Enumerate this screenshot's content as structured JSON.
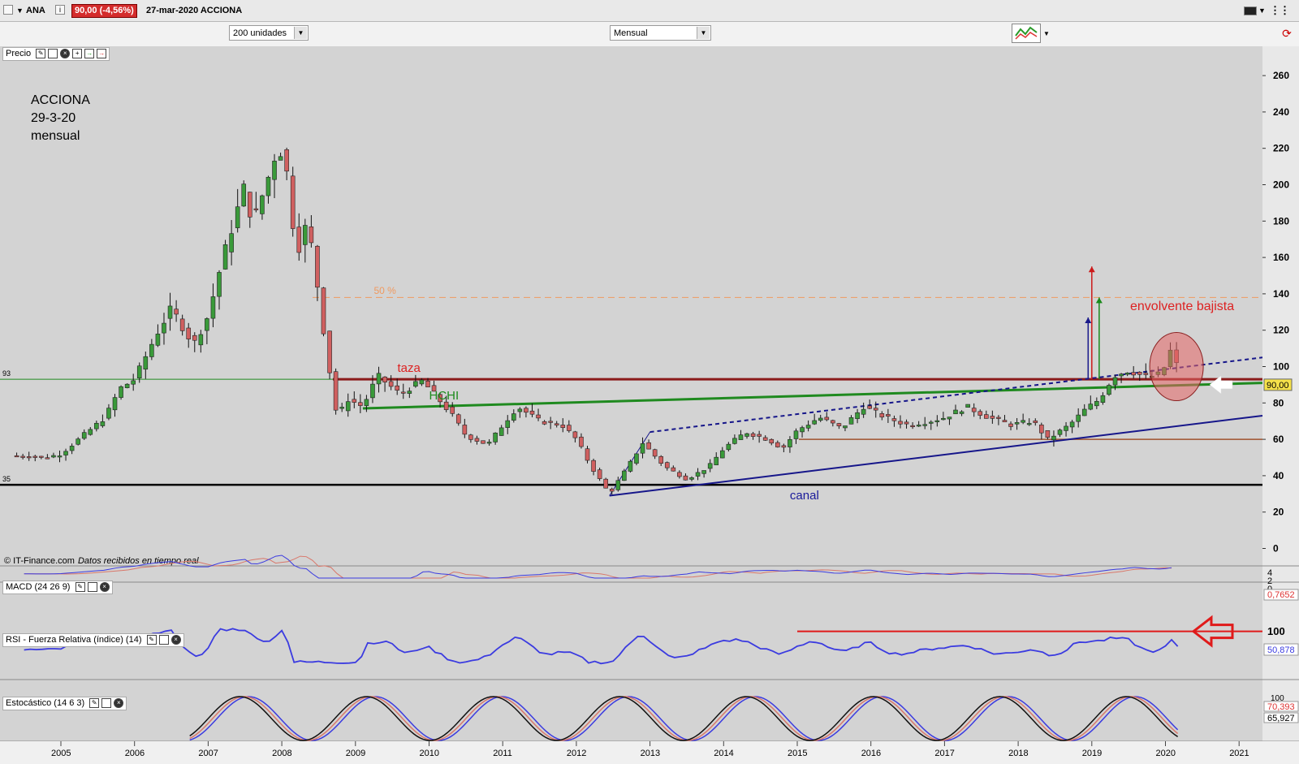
{
  "header": {
    "symbol": "ANA",
    "price_change": "90,00 (-4,56%)",
    "date_name": "27-mar-2020 ACCIONA"
  },
  "toolbar": {
    "units": "200 unidades",
    "period": "Mensual"
  },
  "price_panel": {
    "label": "Precio",
    "credit": "© IT-Finance.com",
    "credit_note": "Datos recibidos en tiempo real",
    "notes": [
      "ACCIONA",
      "29-3-20",
      "mensual"
    ],
    "annotations": {
      "taza": "taza",
      "hchi": "HCHI",
      "canal": "canal",
      "fib": "50 %",
      "engulfing": "envolvente bajista"
    },
    "left_values": [
      "93",
      "35"
    ],
    "last_price": "90,00",
    "colors": {
      "up": "#3a9a3a",
      "down": "#d06060",
      "taza": "#8b1a1a",
      "hchi": "#1f8a1f",
      "canal": "#16168a",
      "support": "#000000",
      "fib": "#f09a60",
      "base": "#a0522d"
    }
  },
  "macd_panel": {
    "label": "MACD (24 26 9)",
    "value": "0,7652",
    "ticks": [
      "4",
      "2",
      "0"
    ]
  },
  "rsi_panel": {
    "label": "RSI - Fuerza Relativa (índice) (14)",
    "value": "50,878",
    "tick": "100"
  },
  "stoch_panel": {
    "label": "Estocástico (14 6 3)",
    "value_k": "70,393",
    "value_d": "65,927",
    "tick": "100"
  },
  "chart_data": {
    "type": "candlestick",
    "title": "ACCIONA",
    "frequency": "mensual",
    "x_years": [
      "2005",
      "2006",
      "2007",
      "2008",
      "2009",
      "2010",
      "2011",
      "2012",
      "2013",
      "2014",
      "2015",
      "2016",
      "2017",
      "2018",
      "2019",
      "2020",
      "2021"
    ],
    "y_ticks": [
      0,
      20,
      40,
      60,
      80,
      100,
      120,
      140,
      160,
      180,
      200,
      220,
      240,
      260
    ],
    "ylim": [
      -10,
      270
    ],
    "close_path": [
      [
        2004.5,
        51
      ],
      [
        2004.8,
        50
      ],
      [
        2005.0,
        52
      ],
      [
        2005.3,
        62
      ],
      [
        2005.6,
        72
      ],
      [
        2005.8,
        88
      ],
      [
        2006.0,
        93
      ],
      [
        2006.3,
        118
      ],
      [
        2006.5,
        132
      ],
      [
        2006.8,
        112
      ],
      [
        2007.0,
        128
      ],
      [
        2007.2,
        160
      ],
      [
        2007.5,
        200
      ],
      [
        2007.6,
        178
      ],
      [
        2007.8,
        202
      ],
      [
        2007.95,
        222
      ],
      [
        2008.05,
        212
      ],
      [
        2008.2,
        162
      ],
      [
        2008.35,
        180
      ],
      [
        2008.5,
        140
      ],
      [
        2008.6,
        110
      ],
      [
        2008.75,
        72
      ],
      [
        2008.9,
        82
      ],
      [
        2009.1,
        78
      ],
      [
        2009.3,
        95
      ],
      [
        2009.6,
        85
      ],
      [
        2009.9,
        92
      ],
      [
        2010.0,
        88
      ],
      [
        2010.3,
        74
      ],
      [
        2010.5,
        62
      ],
      [
        2010.8,
        57
      ],
      [
        2011.0,
        68
      ],
      [
        2011.2,
        78
      ],
      [
        2011.5,
        70
      ],
      [
        2011.8,
        68
      ],
      [
        2012.0,
        60
      ],
      [
        2012.2,
        45
      ],
      [
        2012.45,
        30
      ],
      [
        2012.7,
        45
      ],
      [
        2012.9,
        58
      ],
      [
        2013.2,
        45
      ],
      [
        2013.5,
        38
      ],
      [
        2013.8,
        45
      ],
      [
        2014.0,
        55
      ],
      [
        2014.3,
        64
      ],
      [
        2014.6,
        60
      ],
      [
        2014.8,
        55
      ],
      [
        2015.0,
        65
      ],
      [
        2015.3,
        72
      ],
      [
        2015.6,
        66
      ],
      [
        2015.9,
        78
      ],
      [
        2016.2,
        72
      ],
      [
        2016.5,
        68
      ],
      [
        2016.8,
        70
      ],
      [
        2017.0,
        72
      ],
      [
        2017.3,
        78
      ],
      [
        2017.6,
        72
      ],
      [
        2017.9,
        68
      ],
      [
        2018.2,
        70
      ],
      [
        2018.4,
        60
      ],
      [
        2018.7,
        68
      ],
      [
        2018.9,
        76
      ],
      [
        2019.1,
        82
      ],
      [
        2019.3,
        95
      ],
      [
        2019.5,
        98
      ],
      [
        2019.75,
        94
      ],
      [
        2019.95,
        96
      ],
      [
        2020.1,
        112
      ],
      [
        2020.2,
        90
      ]
    ],
    "horizontal_levels": {
      "support": 35,
      "taza": 93,
      "base": 60,
      "fib_50": 138
    }
  }
}
